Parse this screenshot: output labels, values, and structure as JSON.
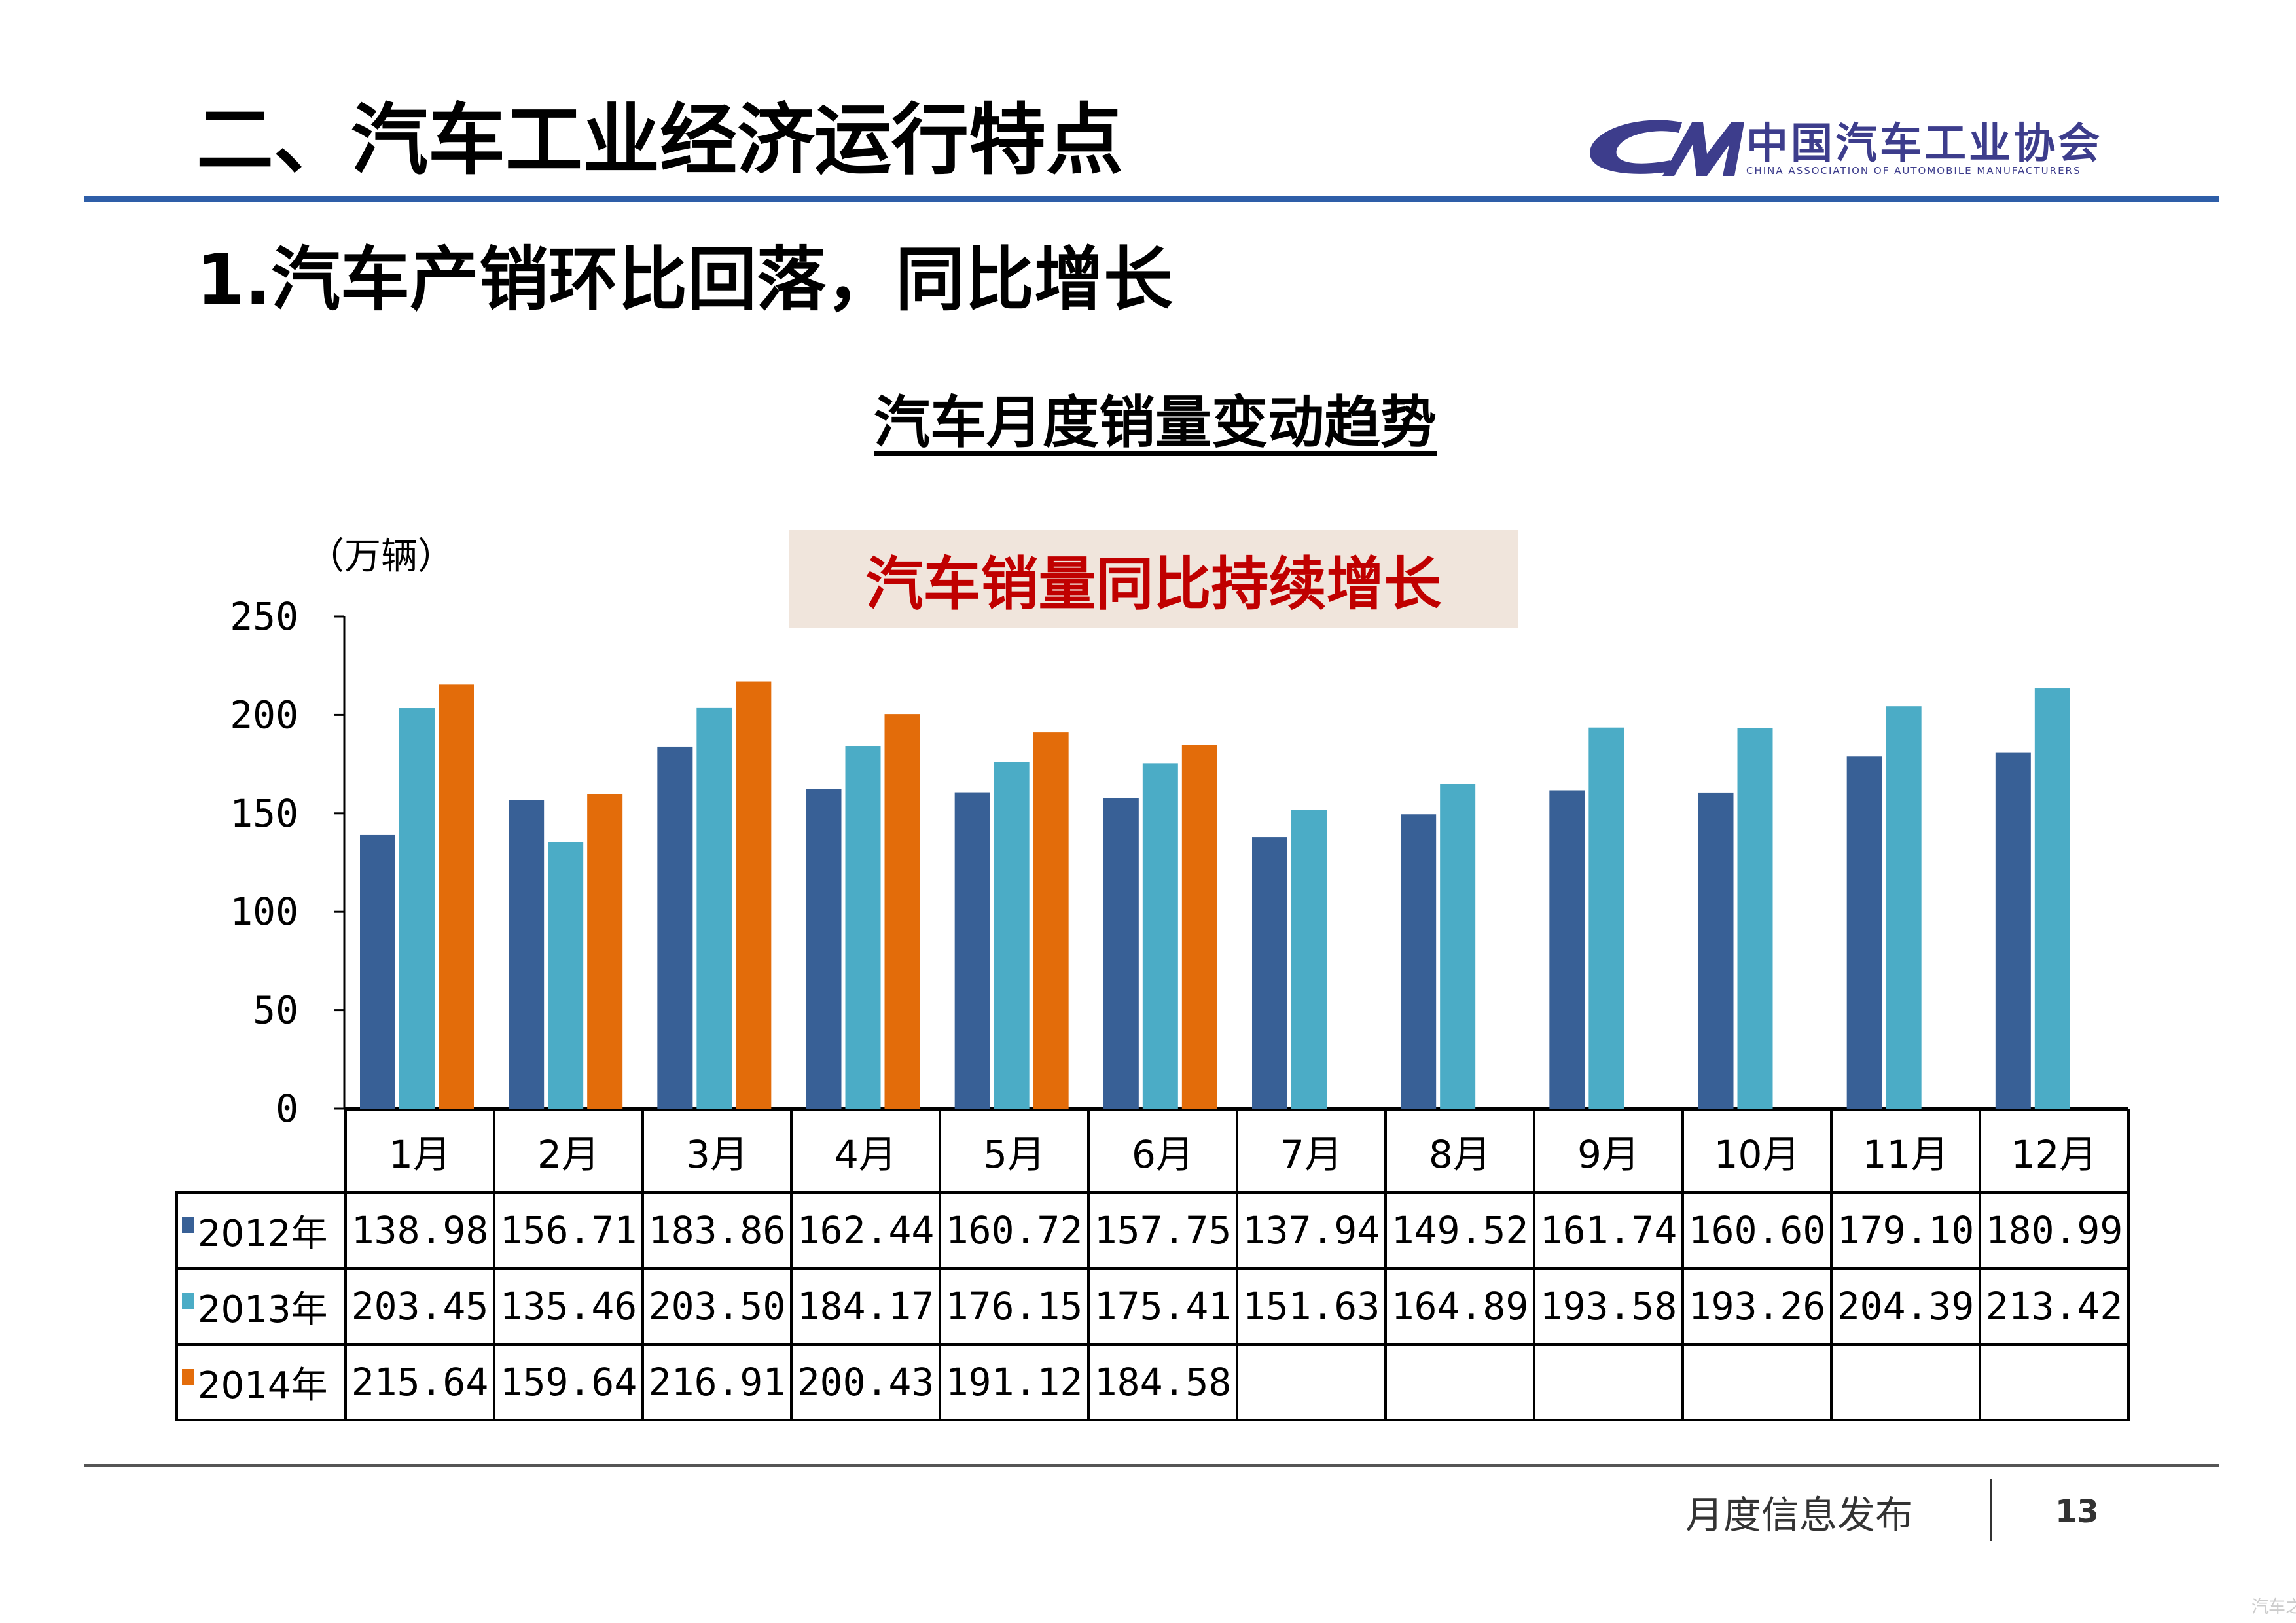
{
  "header": {
    "section_title": "二、汽车工业经济运行特点",
    "subtitle": "1.汽车产销环比回落，同比增长",
    "logo_text_cn": "中国汽车工业协会",
    "logo_text_en": "CHINA ASSOCIATION OF AUTOMOBILE MANUFACTURERS",
    "rule_color": "#2e5ea8"
  },
  "chart_title": "汽车月度销量变动趋势",
  "callout": "汽车销量同比持续增长",
  "chart_data": {
    "type": "bar",
    "unit_label": "（万辆）",
    "categories": [
      "1月",
      "2月",
      "3月",
      "4月",
      "5月",
      "6月",
      "7月",
      "8月",
      "9月",
      "10月",
      "11月",
      "12月"
    ],
    "ylim": [
      0,
      250
    ],
    "yticks": [
      0,
      50,
      100,
      150,
      200,
      250
    ],
    "grid": false,
    "legend": "table-rows",
    "series": [
      {
        "name": "2012年",
        "color": "#386096",
        "values": [
          138.98,
          156.71,
          183.86,
          162.44,
          160.72,
          157.75,
          137.94,
          149.52,
          161.74,
          160.6,
          179.1,
          180.99
        ],
        "labels": [
          "138.98",
          "156.71",
          "183.86",
          "162.44",
          "160.72",
          "157.75",
          "137.94",
          "149.52",
          "161.74",
          "160.60",
          "179.10",
          "180.99"
        ]
      },
      {
        "name": "2013年",
        "color": "#4bacc6",
        "values": [
          203.45,
          135.46,
          203.5,
          184.17,
          176.15,
          175.41,
          151.63,
          164.89,
          193.58,
          193.26,
          204.39,
          213.42
        ],
        "labels": [
          "203.45",
          "135.46",
          "203.50",
          "184.17",
          "176.15",
          "175.41",
          "151.63",
          "164.89",
          "193.58",
          "193.26",
          "204.39",
          "213.42"
        ]
      },
      {
        "name": "2014年",
        "color": "#e36c0a",
        "values": [
          215.64,
          159.64,
          216.91,
          200.43,
          191.12,
          184.58,
          null,
          null,
          null,
          null,
          null,
          null
        ],
        "labels": [
          "215.64",
          "159.64",
          "216.91",
          "200.43",
          "191.12",
          "184.58",
          "",
          "",
          "",
          "",
          "",
          ""
        ]
      }
    ]
  },
  "footer": {
    "text": "月度信息发布",
    "page_number": "13"
  },
  "watermark": "汽车之家"
}
